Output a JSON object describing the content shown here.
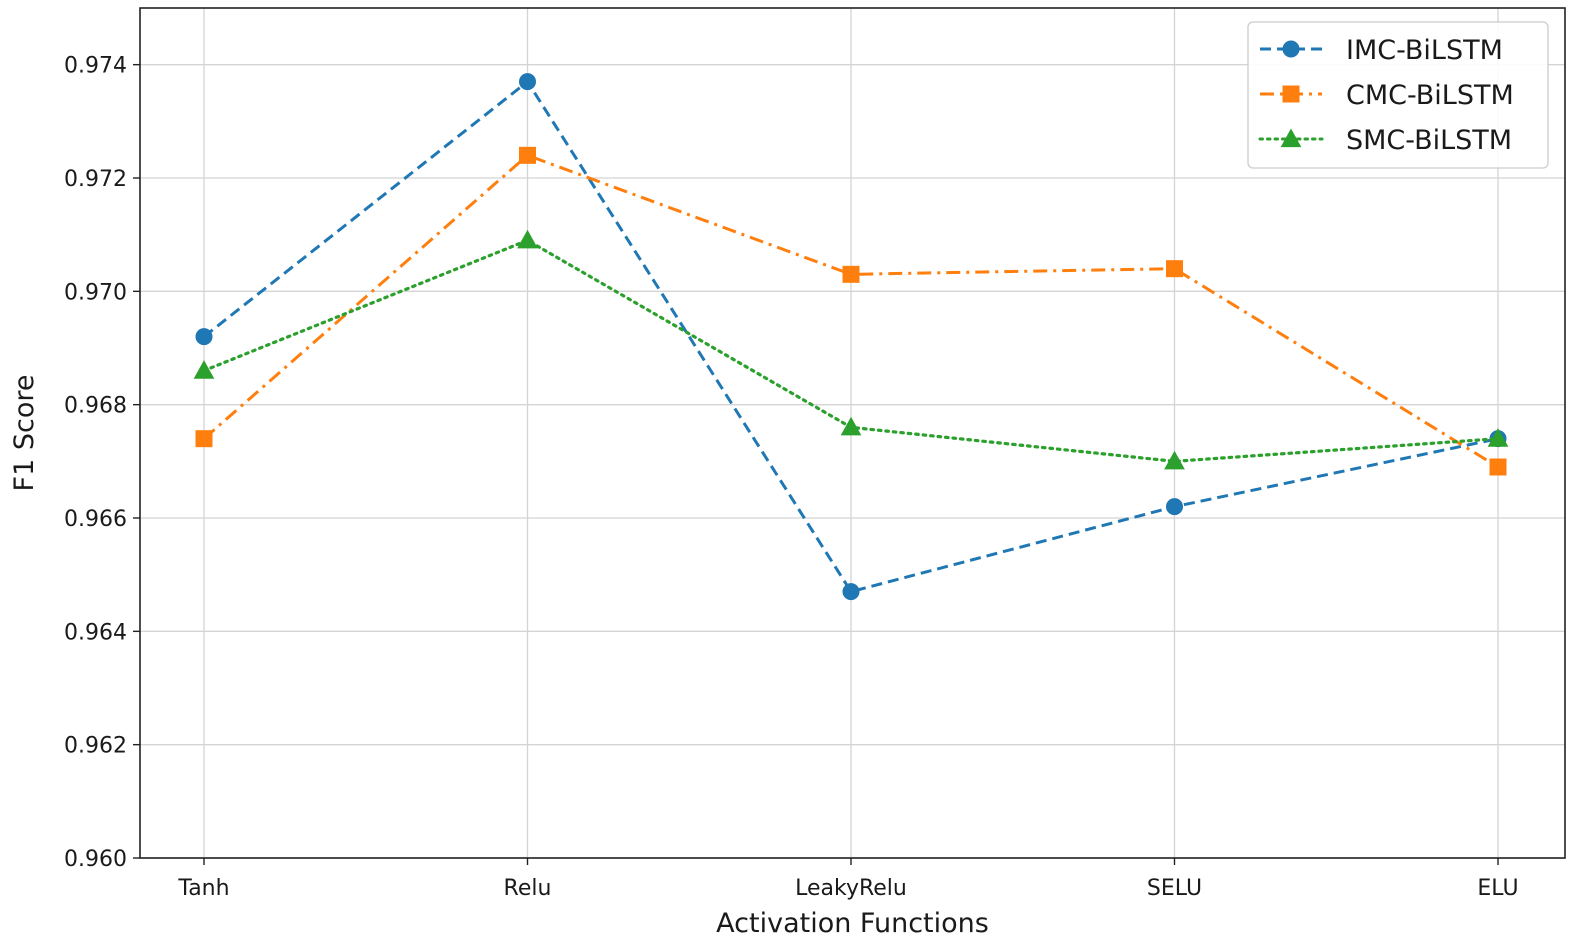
{
  "chart_data": {
    "type": "line",
    "title": "",
    "xlabel": "Activation Functions",
    "ylabel": "F1 Score",
    "categories": [
      "Tanh",
      "Relu",
      "LeakyRelu",
      "SELU",
      "ELU"
    ],
    "ylim": [
      0.96,
      0.975
    ],
    "yticks": [
      0.96,
      0.962,
      0.964,
      0.966,
      0.968,
      0.97,
      0.972,
      0.974
    ],
    "ytick_labels": [
      "0.960",
      "0.962",
      "0.964",
      "0.966",
      "0.968",
      "0.970",
      "0.972",
      "0.974"
    ],
    "grid": true,
    "legend_position": "top-right",
    "series": [
      {
        "name": "IMC-BiLSTM",
        "color": "#1f77b4",
        "linestyle": "dashed",
        "marker": "circle",
        "values": [
          0.9692,
          0.9737,
          0.9647,
          0.9662,
          0.9674
        ]
      },
      {
        "name": "CMC-BiLSTM",
        "color": "#ff7f0e",
        "linestyle": "dashdot",
        "marker": "square",
        "values": [
          0.9674,
          0.9724,
          0.9703,
          0.9704,
          0.9669
        ]
      },
      {
        "name": "SMC-BiLSTM",
        "color": "#2ca02c",
        "linestyle": "dotted",
        "marker": "triangle",
        "values": [
          0.9686,
          0.9709,
          0.9676,
          0.967,
          0.9674
        ]
      }
    ]
  }
}
